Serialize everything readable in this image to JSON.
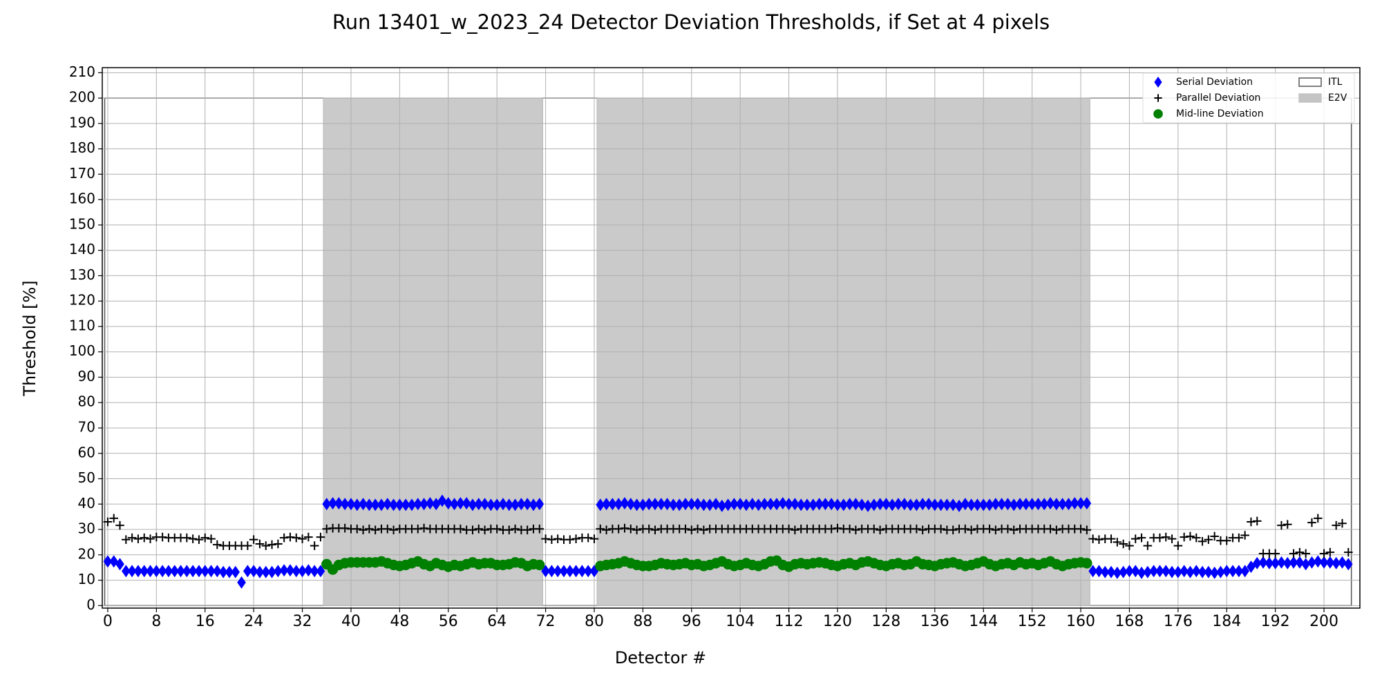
{
  "chart_data": {
    "type": "scatter",
    "title": "Run 13401_w_2023_24 Detector Deviation Thresholds, if Set at 4 pixels",
    "x_label": "Detector #",
    "y_label": "Threshold [%]",
    "xlim": [
      -0.9,
      205.9
    ],
    "ylim": [
      -1,
      212
    ],
    "xticks": [
      0,
      8,
      16,
      24,
      32,
      40,
      48,
      56,
      64,
      72,
      80,
      88,
      96,
      104,
      112,
      120,
      128,
      136,
      144,
      152,
      160,
      168,
      176,
      184,
      192,
      200
    ],
    "yticks": [
      0,
      10,
      20,
      30,
      40,
      50,
      60,
      70,
      80,
      90,
      100,
      110,
      120,
      130,
      140,
      150,
      160,
      170,
      180,
      190,
      200,
      210
    ],
    "grid": true,
    "legend": "upper right",
    "bars": [
      {
        "name": "ITL",
        "facecolor": "none",
        "edgecolor": "#555555",
        "x": [
          [
            -0.5,
            35.5
          ],
          [
            71.5,
            80.5
          ],
          [
            161.5,
            204.5
          ]
        ],
        "values": [
          200,
          200,
          200
        ]
      },
      {
        "name": "E2V",
        "facecolor": "#c4c4c4",
        "edgecolor": "#c4c4c4",
        "x": [
          [
            35.5,
            71.5
          ],
          [
            80.5,
            161.5
          ]
        ],
        "values": [
          200,
          200
        ]
      }
    ],
    "series": [
      {
        "name": "Serial Deviation",
        "marker": "diamond",
        "color": "#0000ff",
        "values": [
          17.4,
          17.4,
          16.3,
          13.6,
          13.6,
          13.6,
          13.6,
          13.6,
          13.6,
          13.6,
          13.6,
          13.6,
          13.6,
          13.6,
          13.6,
          13.6,
          13.6,
          13.6,
          13.6,
          13.2,
          13.2,
          13.2,
          9.1,
          13.6,
          13.6,
          13.2,
          13.2,
          13.2,
          13.6,
          13.9,
          13.9,
          13.6,
          13.6,
          13.9,
          13.6,
          13.6,
          40,
          40.3,
          40.3,
          40,
          40,
          39.7,
          40,
          39.7,
          39.7,
          39.7,
          40,
          39.7,
          39.7,
          39.7,
          39.7,
          40,
          40,
          40.3,
          40,
          41.3,
          40.3,
          40,
          40.3,
          40.3,
          39.7,
          40,
          40,
          39.7,
          39.7,
          40,
          39.7,
          39.7,
          40,
          40,
          39.7,
          40,
          13.6,
          13.6,
          13.6,
          13.6,
          13.6,
          13.6,
          13.6,
          13.6,
          13.6,
          39.7,
          40,
          40,
          40,
          40.3,
          40,
          39.7,
          39.7,
          40,
          40,
          40,
          40,
          39.7,
          39.7,
          40,
          40,
          40,
          39.7,
          39.7,
          40,
          39.3,
          39.7,
          40,
          40,
          39.7,
          40,
          39.7,
          40,
          40,
          40,
          40.3,
          40,
          40,
          39.7,
          39.7,
          39.7,
          40,
          40,
          40,
          39.7,
          39.7,
          40,
          40,
          39.7,
          39.3,
          39.7,
          40,
          40,
          39.7,
          40,
          40,
          39.7,
          39.7,
          40,
          40,
          39.7,
          39.7,
          39.7,
          39.7,
          39.3,
          40,
          39.7,
          39.7,
          39.7,
          39.7,
          40,
          40,
          40,
          39.7,
          40,
          40,
          40,
          40,
          40,
          40.3,
          40,
          40,
          40,
          40.3,
          40.3,
          40.3,
          13.6,
          13.6,
          13.2,
          13.2,
          12.9,
          13.2,
          13.6,
          13.6,
          12.9,
          13.2,
          13.6,
          13.6,
          13.6,
          13.2,
          13.2,
          13.6,
          13.2,
          13.6,
          13.2,
          13.2,
          12.9,
          13.2,
          13.6,
          13.6,
          13.6,
          13.6,
          15.3,
          16.7,
          17,
          16.7,
          16.7,
          17,
          16.7,
          17,
          17,
          16.3,
          17,
          17.4,
          17,
          17,
          16.7,
          17,
          16.3
        ]
      },
      {
        "name": "Parallel Deviation",
        "marker": "plus",
        "color": "#000000",
        "values": [
          33,
          34.4,
          31.6,
          26,
          26.7,
          26.3,
          26.7,
          26.3,
          27,
          27,
          26.7,
          26.7,
          26.7,
          26.7,
          26.3,
          26,
          26.7,
          26.3,
          24,
          23.6,
          23.6,
          23.6,
          23.6,
          23.6,
          26,
          24.3,
          23.6,
          24,
          24.3,
          26.7,
          27,
          26.7,
          26.3,
          27,
          23.6,
          27,
          30.2,
          30.5,
          30.5,
          30.5,
          30.2,
          30.2,
          29.8,
          30.2,
          29.8,
          30.2,
          30.2,
          29.8,
          30.2,
          30.2,
          30.2,
          30.2,
          30.5,
          30.2,
          30.2,
          30.2,
          30.2,
          30.2,
          30.2,
          29.8,
          29.8,
          30.2,
          29.8,
          30.2,
          30.2,
          29.8,
          29.8,
          30.2,
          29.8,
          29.8,
          30.2,
          30.2,
          26.3,
          26,
          26.3,
          26,
          26,
          26.3,
          26.7,
          26.7,
          26.3,
          30.2,
          29.8,
          30.2,
          30.2,
          30.5,
          30.2,
          29.8,
          30.2,
          30.2,
          29.8,
          30.2,
          30.2,
          30.2,
          30.2,
          30.2,
          29.8,
          30.2,
          29.8,
          30.2,
          30.2,
          30.2,
          30.2,
          30.2,
          30.2,
          30.2,
          30.2,
          30.2,
          30.2,
          30.2,
          30.2,
          30.2,
          30.2,
          29.8,
          30.2,
          30.2,
          30.2,
          30.2,
          30.2,
          30.2,
          30.5,
          30.2,
          30.2,
          29.8,
          30.2,
          30.2,
          30.2,
          29.8,
          30.2,
          30.2,
          30.2,
          30.2,
          30.2,
          30.2,
          29.8,
          30.2,
          30.2,
          30.2,
          29.8,
          29.8,
          30.2,
          30.2,
          29.8,
          30.2,
          30.2,
          30.2,
          29.8,
          30.2,
          30.2,
          29.8,
          30.2,
          30.2,
          30.2,
          30.2,
          30.2,
          30.2,
          29.8,
          30.2,
          30.2,
          30.2,
          30.2,
          29.8,
          26.3,
          26,
          26.3,
          26.3,
          25,
          24.3,
          23.6,
          26.3,
          26.7,
          23.6,
          26.7,
          26.7,
          27,
          26.3,
          23.6,
          27,
          27.3,
          26.7,
          25.3,
          26,
          27.3,
          25.6,
          25.6,
          26.7,
          26.7,
          27.7,
          33,
          33.3,
          20.5,
          20.5,
          20.5,
          31.6,
          32,
          20.5,
          21,
          20.5,
          32.7,
          34.4,
          20.5,
          21,
          31.6,
          32.4,
          21
        ]
      },
      {
        "name": "Mid-line Deviation",
        "marker": "circle",
        "color": "#008000",
        "values": [
          null,
          null,
          null,
          null,
          null,
          null,
          null,
          null,
          null,
          null,
          null,
          null,
          null,
          null,
          null,
          null,
          null,
          null,
          null,
          null,
          null,
          null,
          null,
          null,
          null,
          null,
          null,
          null,
          null,
          null,
          null,
          null,
          null,
          null,
          null,
          null,
          16.3,
          14.2,
          16,
          16.7,
          17,
          17,
          17,
          17,
          17,
          17.4,
          16.7,
          16,
          15.6,
          16,
          16.7,
          17.4,
          16.3,
          15.6,
          16.7,
          16,
          15.3,
          16,
          15.6,
          16.3,
          17,
          16.3,
          16.7,
          16.7,
          16,
          16,
          16.3,
          17,
          16.7,
          15.6,
          16.3,
          16,
          null,
          null,
          null,
          null,
          null,
          null,
          null,
          null,
          null,
          15.6,
          16,
          16.3,
          16.7,
          17.4,
          16.7,
          16,
          15.6,
          15.6,
          16,
          16.7,
          16.3,
          16,
          16.3,
          16.7,
          16,
          16.3,
          15.6,
          16,
          16.7,
          17.4,
          16.3,
          15.6,
          16,
          16.7,
          16,
          15.6,
          16.3,
          17.4,
          17.7,
          16,
          15.3,
          16.3,
          16.7,
          16.3,
          16.7,
          17,
          16.7,
          16,
          15.6,
          16.3,
          16.7,
          16,
          17,
          17.4,
          16.7,
          16,
          15.6,
          16.3,
          16.7,
          16,
          16.3,
          17.4,
          16.3,
          16,
          15.6,
          16.3,
          16.7,
          17,
          16.3,
          15.6,
          16,
          16.7,
          17.4,
          16.3,
          15.6,
          16.3,
          16.7,
          16,
          17,
          16.3,
          16.7,
          16,
          16.7,
          17.4,
          16.3,
          15.6,
          16.3,
          16.7,
          17,
          16.7,
          null,
          null,
          null,
          null,
          null,
          null,
          null,
          null,
          null,
          null,
          null,
          null,
          null,
          null,
          null,
          null,
          null,
          null,
          null,
          null,
          null,
          null,
          null,
          null,
          null,
          null,
          null,
          null,
          null,
          null,
          null,
          null,
          null,
          null,
          null,
          null,
          null,
          null,
          null,
          null,
          null,
          null,
          null
        ]
      }
    ]
  }
}
